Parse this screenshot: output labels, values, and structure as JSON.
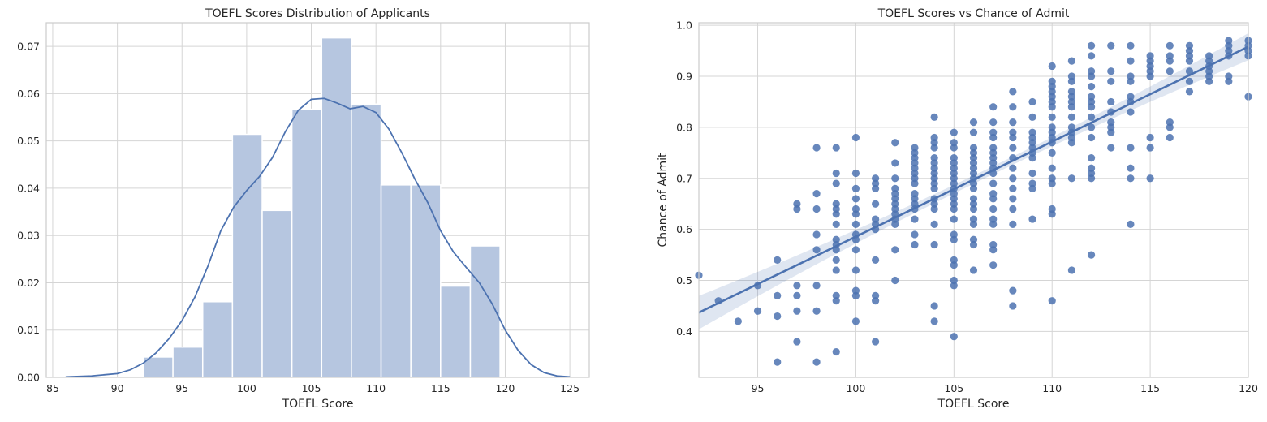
{
  "chart_data": [
    {
      "type": "bar",
      "title": "TOEFL Scores Distribution of Applicants",
      "xlabel": "TOEFL Score",
      "ylabel": "",
      "xlim": [
        84.5,
        126.5
      ],
      "ylim": [
        0,
        0.075
      ],
      "xticks": [
        85,
        90,
        95,
        100,
        105,
        110,
        115,
        120,
        125
      ],
      "yticks": [
        0.0,
        0.01,
        0.02,
        0.03,
        0.04,
        0.05,
        0.06,
        0.07
      ],
      "grid": true,
      "bar_color": "#b6c6e0",
      "line_color": "#4c72b0",
      "bins": [
        {
          "x0": 92.0,
          "x1": 94.3,
          "value": 0.0043
        },
        {
          "x0": 94.3,
          "x1": 96.6,
          "value": 0.0064
        },
        {
          "x0": 96.6,
          "x1": 98.9,
          "value": 0.016
        },
        {
          "x0": 98.9,
          "x1": 101.2,
          "value": 0.0514
        },
        {
          "x0": 101.2,
          "x1": 103.5,
          "value": 0.0353
        },
        {
          "x0": 103.5,
          "x1": 105.8,
          "value": 0.0567
        },
        {
          "x0": 105.8,
          "x1": 108.1,
          "value": 0.0718
        },
        {
          "x0": 108.1,
          "x1": 110.4,
          "value": 0.0578
        },
        {
          "x0": 110.4,
          "x1": 112.7,
          "value": 0.0407
        },
        {
          "x0": 112.7,
          "x1": 115.0,
          "value": 0.0407
        },
        {
          "x0": 115.0,
          "x1": 117.3,
          "value": 0.0193
        },
        {
          "x0": 117.3,
          "x1": 119.6,
          "value": 0.0278
        }
      ],
      "kde": {
        "x": [
          86,
          88,
          90,
          91,
          92,
          93,
          94,
          95,
          96,
          97,
          98,
          99,
          100,
          101,
          102,
          103,
          104,
          105,
          106,
          107,
          108,
          109,
          110,
          111,
          112,
          113,
          114,
          115,
          116,
          117,
          118,
          119,
          120,
          121,
          122,
          123,
          124,
          125
        ],
        "y": [
          0.0001,
          0.0003,
          0.0008,
          0.0016,
          0.003,
          0.0052,
          0.0082,
          0.012,
          0.017,
          0.0235,
          0.031,
          0.036,
          0.0395,
          0.0425,
          0.0465,
          0.052,
          0.0565,
          0.0588,
          0.059,
          0.058,
          0.0568,
          0.0573,
          0.056,
          0.0525,
          0.0475,
          0.042,
          0.037,
          0.031,
          0.0265,
          0.0232,
          0.02,
          0.0155,
          0.01,
          0.0057,
          0.0027,
          0.001,
          0.0003,
          0.0001
        ]
      }
    },
    {
      "type": "scatter",
      "title": "TOEFL Scores vs Chance of Admit",
      "xlabel": "TOEFL Score",
      "ylabel": "Chance of Admit",
      "xlim": [
        92,
        120
      ],
      "ylim": [
        0.31,
        1.005
      ],
      "xticks": [
        95,
        100,
        105,
        110,
        115,
        120
      ],
      "yticks": [
        0.4,
        0.5,
        0.6,
        0.7,
        0.8,
        0.9,
        1.0
      ],
      "grid": true,
      "point_color": "#4c72b0",
      "regression": {
        "x": [
          92,
          120
        ],
        "y": [
          0.437,
          0.958
        ]
      },
      "points": [
        [
          92,
          0.51
        ],
        [
          93,
          0.46
        ],
        [
          94,
          0.42
        ],
        [
          95,
          0.44
        ],
        [
          95,
          0.49
        ],
        [
          96,
          0.34
        ],
        [
          96,
          0.43
        ],
        [
          96,
          0.47
        ],
        [
          96,
          0.54
        ],
        [
          97,
          0.38
        ],
        [
          97,
          0.44
        ],
        [
          97,
          0.47
        ],
        [
          97,
          0.49
        ],
        [
          97,
          0.64
        ],
        [
          97,
          0.65
        ],
        [
          98,
          0.34
        ],
        [
          98,
          0.44
        ],
        [
          98,
          0.49
        ],
        [
          98,
          0.56
        ],
        [
          98,
          0.59
        ],
        [
          98,
          0.64
        ],
        [
          98,
          0.67
        ],
        [
          98,
          0.76
        ],
        [
          99,
          0.36
        ],
        [
          99,
          0.46
        ],
        [
          99,
          0.47
        ],
        [
          99,
          0.52
        ],
        [
          99,
          0.54
        ],
        [
          99,
          0.56
        ],
        [
          99,
          0.57
        ],
        [
          99,
          0.58
        ],
        [
          99,
          0.61
        ],
        [
          99,
          0.63
        ],
        [
          99,
          0.64
        ],
        [
          99,
          0.65
        ],
        [
          99,
          0.69
        ],
        [
          99,
          0.71
        ],
        [
          99,
          0.76
        ],
        [
          100,
          0.42
        ],
        [
          100,
          0.47
        ],
        [
          100,
          0.48
        ],
        [
          100,
          0.52
        ],
        [
          100,
          0.56
        ],
        [
          100,
          0.58
        ],
        [
          100,
          0.59
        ],
        [
          100,
          0.61
        ],
        [
          100,
          0.63
        ],
        [
          100,
          0.64
        ],
        [
          100,
          0.66
        ],
        [
          100,
          0.68
        ],
        [
          100,
          0.71
        ],
        [
          100,
          0.78
        ],
        [
          101,
          0.38
        ],
        [
          101,
          0.46
        ],
        [
          101,
          0.47
        ],
        [
          101,
          0.54
        ],
        [
          101,
          0.6
        ],
        [
          101,
          0.61
        ],
        [
          101,
          0.62
        ],
        [
          101,
          0.65
        ],
        [
          101,
          0.68
        ],
        [
          101,
          0.69
        ],
        [
          101,
          0.7
        ],
        [
          102,
          0.5
        ],
        [
          102,
          0.56
        ],
        [
          102,
          0.61
        ],
        [
          102,
          0.62
        ],
        [
          102,
          0.63
        ],
        [
          102,
          0.64
        ],
        [
          102,
          0.65
        ],
        [
          102,
          0.66
        ],
        [
          102,
          0.67
        ],
        [
          102,
          0.68
        ],
        [
          102,
          0.7
        ],
        [
          102,
          0.73
        ],
        [
          102,
          0.77
        ],
        [
          103,
          0.57
        ],
        [
          103,
          0.59
        ],
        [
          103,
          0.62
        ],
        [
          103,
          0.64
        ],
        [
          103,
          0.65
        ],
        [
          103,
          0.66
        ],
        [
          103,
          0.67
        ],
        [
          103,
          0.69
        ],
        [
          103,
          0.7
        ],
        [
          103,
          0.71
        ],
        [
          103,
          0.72
        ],
        [
          103,
          0.73
        ],
        [
          103,
          0.74
        ],
        [
          103,
          0.75
        ],
        [
          103,
          0.76
        ],
        [
          104,
          0.42
        ],
        [
          104,
          0.45
        ],
        [
          104,
          0.57
        ],
        [
          104,
          0.61
        ],
        [
          104,
          0.64
        ],
        [
          104,
          0.65
        ],
        [
          104,
          0.66
        ],
        [
          104,
          0.68
        ],
        [
          104,
          0.69
        ],
        [
          104,
          0.7
        ],
        [
          104,
          0.71
        ],
        [
          104,
          0.72
        ],
        [
          104,
          0.73
        ],
        [
          104,
          0.74
        ],
        [
          104,
          0.76
        ],
        [
          104,
          0.77
        ],
        [
          104,
          0.78
        ],
        [
          104,
          0.82
        ],
        [
          105,
          0.39
        ],
        [
          105,
          0.49
        ],
        [
          105,
          0.5
        ],
        [
          105,
          0.53
        ],
        [
          105,
          0.54
        ],
        [
          105,
          0.58
        ],
        [
          105,
          0.59
        ],
        [
          105,
          0.62
        ],
        [
          105,
          0.64
        ],
        [
          105,
          0.65
        ],
        [
          105,
          0.66
        ],
        [
          105,
          0.67
        ],
        [
          105,
          0.68
        ],
        [
          105,
          0.69
        ],
        [
          105,
          0.7
        ],
        [
          105,
          0.71
        ],
        [
          105,
          0.72
        ],
        [
          105,
          0.73
        ],
        [
          105,
          0.74
        ],
        [
          105,
          0.76
        ],
        [
          105,
          0.77
        ],
        [
          105,
          0.79
        ],
        [
          106,
          0.52
        ],
        [
          106,
          0.57
        ],
        [
          106,
          0.58
        ],
        [
          106,
          0.61
        ],
        [
          106,
          0.62
        ],
        [
          106,
          0.64
        ],
        [
          106,
          0.65
        ],
        [
          106,
          0.66
        ],
        [
          106,
          0.68
        ],
        [
          106,
          0.69
        ],
        [
          106,
          0.7
        ],
        [
          106,
          0.71
        ],
        [
          106,
          0.72
        ],
        [
          106,
          0.73
        ],
        [
          106,
          0.74
        ],
        [
          106,
          0.75
        ],
        [
          106,
          0.76
        ],
        [
          106,
          0.79
        ],
        [
          106,
          0.81
        ],
        [
          107,
          0.53
        ],
        [
          107,
          0.56
        ],
        [
          107,
          0.57
        ],
        [
          107,
          0.61
        ],
        [
          107,
          0.62
        ],
        [
          107,
          0.64
        ],
        [
          107,
          0.66
        ],
        [
          107,
          0.67
        ],
        [
          107,
          0.69
        ],
        [
          107,
          0.71
        ],
        [
          107,
          0.72
        ],
        [
          107,
          0.73
        ],
        [
          107,
          0.74
        ],
        [
          107,
          0.75
        ],
        [
          107,
          0.76
        ],
        [
          107,
          0.78
        ],
        [
          107,
          0.79
        ],
        [
          107,
          0.81
        ],
        [
          107,
          0.84
        ],
        [
          108,
          0.45
        ],
        [
          108,
          0.48
        ],
        [
          108,
          0.61
        ],
        [
          108,
          0.64
        ],
        [
          108,
          0.66
        ],
        [
          108,
          0.68
        ],
        [
          108,
          0.7
        ],
        [
          108,
          0.72
        ],
        [
          108,
          0.74
        ],
        [
          108,
          0.76
        ],
        [
          108,
          0.78
        ],
        [
          108,
          0.79
        ],
        [
          108,
          0.81
        ],
        [
          108,
          0.84
        ],
        [
          108,
          0.87
        ],
        [
          109,
          0.62
        ],
        [
          109,
          0.68
        ],
        [
          109,
          0.69
        ],
        [
          109,
          0.71
        ],
        [
          109,
          0.74
        ],
        [
          109,
          0.75
        ],
        [
          109,
          0.76
        ],
        [
          109,
          0.77
        ],
        [
          109,
          0.78
        ],
        [
          109,
          0.79
        ],
        [
          109,
          0.82
        ],
        [
          109,
          0.85
        ],
        [
          110,
          0.46
        ],
        [
          110,
          0.63
        ],
        [
          110,
          0.64
        ],
        [
          110,
          0.69
        ],
        [
          110,
          0.7
        ],
        [
          110,
          0.72
        ],
        [
          110,
          0.75
        ],
        [
          110,
          0.77
        ],
        [
          110,
          0.78
        ],
        [
          110,
          0.79
        ],
        [
          110,
          0.8
        ],
        [
          110,
          0.82
        ],
        [
          110,
          0.84
        ],
        [
          110,
          0.85
        ],
        [
          110,
          0.86
        ],
        [
          110,
          0.87
        ],
        [
          110,
          0.88
        ],
        [
          110,
          0.89
        ],
        [
          110,
          0.92
        ],
        [
          111,
          0.52
        ],
        [
          111,
          0.7
        ],
        [
          111,
          0.77
        ],
        [
          111,
          0.78
        ],
        [
          111,
          0.79
        ],
        [
          111,
          0.8
        ],
        [
          111,
          0.82
        ],
        [
          111,
          0.84
        ],
        [
          111,
          0.85
        ],
        [
          111,
          0.86
        ],
        [
          111,
          0.87
        ],
        [
          111,
          0.89
        ],
        [
          111,
          0.9
        ],
        [
          111,
          0.93
        ],
        [
          112,
          0.55
        ],
        [
          112,
          0.7
        ],
        [
          112,
          0.71
        ],
        [
          112,
          0.72
        ],
        [
          112,
          0.74
        ],
        [
          112,
          0.78
        ],
        [
          112,
          0.8
        ],
        [
          112,
          0.82
        ],
        [
          112,
          0.84
        ],
        [
          112,
          0.85
        ],
        [
          112,
          0.86
        ],
        [
          112,
          0.88
        ],
        [
          112,
          0.9
        ],
        [
          112,
          0.91
        ],
        [
          112,
          0.94
        ],
        [
          112,
          0.96
        ],
        [
          113,
          0.76
        ],
        [
          113,
          0.79
        ],
        [
          113,
          0.8
        ],
        [
          113,
          0.81
        ],
        [
          113,
          0.83
        ],
        [
          113,
          0.85
        ],
        [
          113,
          0.89
        ],
        [
          113,
          0.91
        ],
        [
          113,
          0.96
        ],
        [
          114,
          0.61
        ],
        [
          114,
          0.7
        ],
        [
          114,
          0.72
        ],
        [
          114,
          0.76
        ],
        [
          114,
          0.83
        ],
        [
          114,
          0.85
        ],
        [
          114,
          0.86
        ],
        [
          114,
          0.89
        ],
        [
          114,
          0.9
        ],
        [
          114,
          0.93
        ],
        [
          114,
          0.96
        ],
        [
          115,
          0.7
        ],
        [
          115,
          0.76
        ],
        [
          115,
          0.78
        ],
        [
          115,
          0.9
        ],
        [
          115,
          0.91
        ],
        [
          115,
          0.92
        ],
        [
          115,
          0.93
        ],
        [
          115,
          0.94
        ],
        [
          116,
          0.78
        ],
        [
          116,
          0.8
        ],
        [
          116,
          0.81
        ],
        [
          116,
          0.91
        ],
        [
          116,
          0.93
        ],
        [
          116,
          0.94
        ],
        [
          116,
          0.96
        ],
        [
          117,
          0.87
        ],
        [
          117,
          0.89
        ],
        [
          117,
          0.91
        ],
        [
          117,
          0.93
        ],
        [
          117,
          0.94
        ],
        [
          117,
          0.95
        ],
        [
          117,
          0.96
        ],
        [
          118,
          0.89
        ],
        [
          118,
          0.9
        ],
        [
          118,
          0.91
        ],
        [
          118,
          0.92
        ],
        [
          118,
          0.93
        ],
        [
          118,
          0.94
        ],
        [
          119,
          0.89
        ],
        [
          119,
          0.9
        ],
        [
          119,
          0.94
        ],
        [
          119,
          0.95
        ],
        [
          119,
          0.96
        ],
        [
          119,
          0.97
        ],
        [
          120,
          0.86
        ],
        [
          120,
          0.94
        ],
        [
          120,
          0.95
        ],
        [
          120,
          0.96
        ],
        [
          120,
          0.97
        ]
      ]
    }
  ]
}
